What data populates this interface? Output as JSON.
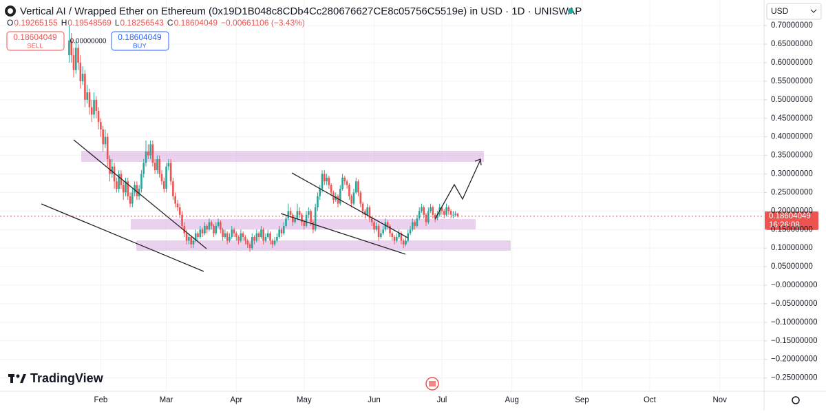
{
  "chart_data": {
    "type": "candlestick",
    "title": "Vertical AI / Wrapped Ether on Ethereum (0x19D1B048c8CDb4Cc280676627CE8c05756C5519e) in USD · 1D · UNISWAP",
    "ohlc_labels": [
      "O",
      "H",
      "L",
      "C"
    ],
    "change": "−0.00661106 (−3.43%)",
    "sell_label": "SELL",
    "buy_label": "BUY",
    "spread": "0.00000000",
    "currency": "USD",
    "countdown": "16:26:08",
    "brand": "TradingView",
    "up_color": "#26a69a",
    "down_color": "#ef5350",
    "grid": true,
    "xlim": [
      -13.6,
      324.6
    ],
    "xticks": [
      {
        "value": 31,
        "label": "Feb"
      },
      {
        "value": 60,
        "label": "Mar"
      },
      {
        "value": 91,
        "label": "Apr"
      },
      {
        "value": 121,
        "label": "May"
      },
      {
        "value": 152,
        "label": "Jun"
      },
      {
        "value": 182,
        "label": "Jul"
      },
      {
        "value": 213,
        "label": "Aug"
      },
      {
        "value": 244,
        "label": "Sep"
      },
      {
        "value": 274,
        "label": "Oct"
      },
      {
        "value": 305,
        "label": "Nov"
      }
    ],
    "ylim": [
      -0.286,
      0.769
    ],
    "yticks": [
      {
        "value": 0.7,
        "label": "0.70000000"
      },
      {
        "value": 0.65,
        "label": "0.65000000"
      },
      {
        "value": 0.6,
        "label": "0.60000000"
      },
      {
        "value": 0.55,
        "label": "0.55000000"
      },
      {
        "value": 0.5,
        "label": "0.50000000"
      },
      {
        "value": 0.45,
        "label": "0.45000000"
      },
      {
        "value": 0.4,
        "label": "0.40000000"
      },
      {
        "value": 0.35,
        "label": "0.35000000"
      },
      {
        "value": 0.3,
        "label": "0.30000000"
      },
      {
        "value": 0.25,
        "label": "0.25000000"
      },
      {
        "value": 0.2,
        "label": "0.20000000"
      },
      {
        "value": 0.15,
        "label": "0.15000000"
      },
      {
        "value": 0.1,
        "label": "0.10000000"
      },
      {
        "value": 0.05,
        "label": "0.05000000"
      },
      {
        "value": 0,
        "label": "−0.00000000"
      },
      {
        "value": -0.05,
        "label": "−0.05000000"
      },
      {
        "value": -0.1,
        "label": "−0.10000000"
      },
      {
        "value": -0.15,
        "label": "−0.15000000"
      },
      {
        "value": -0.2,
        "label": "−0.20000000"
      },
      {
        "value": -0.25,
        "label": "−0.25000000"
      }
    ],
    "x": [
      17,
      18,
      19,
      20,
      21,
      22,
      23,
      24,
      25,
      26,
      27,
      28,
      29,
      30,
      31,
      32,
      33,
      34,
      35,
      36,
      37,
      38,
      39,
      40,
      41,
      42,
      43,
      44,
      45,
      46,
      47,
      48,
      49,
      50,
      51,
      52,
      53,
      54,
      55,
      56,
      57,
      58,
      59,
      60,
      61,
      62,
      63,
      64,
      65,
      66,
      67,
      68,
      69,
      70,
      71,
      72,
      73,
      74,
      75,
      76,
      77,
      78,
      79,
      80,
      81,
      82,
      83,
      84,
      85,
      86,
      87,
      88,
      89,
      90,
      91,
      92,
      93,
      94,
      95,
      96,
      97,
      98,
      99,
      100,
      101,
      102,
      103,
      104,
      105,
      106,
      107,
      108,
      109,
      110,
      111,
      112,
      113,
      114,
      115,
      116,
      117,
      118,
      119,
      120,
      121,
      122,
      123,
      124,
      125,
      126,
      127,
      128,
      129,
      130,
      131,
      132,
      133,
      134,
      135,
      136,
      137,
      138,
      139,
      140,
      141,
      142,
      143,
      144,
      145,
      146,
      147,
      148,
      149,
      150,
      151,
      152,
      153,
      154,
      155,
      156,
      157,
      158,
      159,
      160,
      161,
      162,
      163,
      164,
      165,
      166,
      167,
      168,
      169,
      170,
      171,
      172,
      173,
      174,
      175,
      176,
      177,
      178,
      179,
      180,
      181,
      182,
      183,
      184,
      185,
      186,
      187,
      188,
      189
    ],
    "ohlc": [
      [
        0.62,
        0.7,
        0.6,
        0.66
      ],
      [
        0.66,
        0.68,
        0.6,
        0.62
      ],
      [
        0.62,
        0.64,
        0.56,
        0.58
      ],
      [
        0.58,
        0.66,
        0.57,
        0.64
      ],
      [
        0.64,
        0.65,
        0.58,
        0.6
      ],
      [
        0.6,
        0.62,
        0.53,
        0.55
      ],
      [
        0.55,
        0.59,
        0.54,
        0.57
      ],
      [
        0.57,
        0.58,
        0.48,
        0.5
      ],
      [
        0.5,
        0.54,
        0.49,
        0.52
      ],
      [
        0.52,
        0.53,
        0.46,
        0.48
      ],
      [
        0.48,
        0.5,
        0.44,
        0.46
      ],
      [
        0.46,
        0.52,
        0.45,
        0.5
      ],
      [
        0.5,
        0.51,
        0.45,
        0.47
      ],
      [
        0.47,
        0.48,
        0.42,
        0.44
      ],
      [
        0.44,
        0.45,
        0.4,
        0.42
      ],
      [
        0.42,
        0.43,
        0.36,
        0.38
      ],
      [
        0.38,
        0.42,
        0.37,
        0.4
      ],
      [
        0.4,
        0.41,
        0.32,
        0.34
      ],
      [
        0.34,
        0.35,
        0.28,
        0.3
      ],
      [
        0.3,
        0.34,
        0.29,
        0.32
      ],
      [
        0.32,
        0.33,
        0.26,
        0.28
      ],
      [
        0.28,
        0.29,
        0.25,
        0.26
      ],
      [
        0.26,
        0.31,
        0.25,
        0.3
      ],
      [
        0.3,
        0.31,
        0.26,
        0.27
      ],
      [
        0.27,
        0.28,
        0.23,
        0.25
      ],
      [
        0.25,
        0.29,
        0.24,
        0.28
      ],
      [
        0.28,
        0.29,
        0.23,
        0.24
      ],
      [
        0.24,
        0.25,
        0.21,
        0.22
      ],
      [
        0.22,
        0.26,
        0.21,
        0.25
      ],
      [
        0.25,
        0.28,
        0.24,
        0.27
      ],
      [
        0.27,
        0.28,
        0.23,
        0.24
      ],
      [
        0.24,
        0.27,
        0.23,
        0.26
      ],
      [
        0.26,
        0.31,
        0.25,
        0.3
      ],
      [
        0.3,
        0.34,
        0.29,
        0.33
      ],
      [
        0.33,
        0.39,
        0.32,
        0.36
      ],
      [
        0.36,
        0.38,
        0.34,
        0.35
      ],
      [
        0.35,
        0.39,
        0.34,
        0.38
      ],
      [
        0.38,
        0.39,
        0.32,
        0.33
      ],
      [
        0.33,
        0.34,
        0.3,
        0.31
      ],
      [
        0.31,
        0.35,
        0.3,
        0.34
      ],
      [
        0.34,
        0.35,
        0.29,
        0.3
      ],
      [
        0.3,
        0.31,
        0.27,
        0.28
      ],
      [
        0.28,
        0.29,
        0.25,
        0.26
      ],
      [
        0.26,
        0.33,
        0.25,
        0.32
      ],
      [
        0.32,
        0.34,
        0.31,
        0.33
      ],
      [
        0.33,
        0.34,
        0.27,
        0.28
      ],
      [
        0.28,
        0.29,
        0.23,
        0.24
      ],
      [
        0.24,
        0.25,
        0.21,
        0.22
      ],
      [
        0.22,
        0.23,
        0.2,
        0.21
      ],
      [
        0.21,
        0.22,
        0.18,
        0.19
      ],
      [
        0.19,
        0.2,
        0.15,
        0.16
      ],
      [
        0.16,
        0.17,
        0.13,
        0.14
      ],
      [
        0.14,
        0.15,
        0.11,
        0.12
      ],
      [
        0.12,
        0.14,
        0.11,
        0.13
      ],
      [
        0.13,
        0.135,
        0.1,
        0.11
      ],
      [
        0.11,
        0.13,
        0.1,
        0.12
      ],
      [
        0.12,
        0.15,
        0.115,
        0.14
      ],
      [
        0.14,
        0.145,
        0.12,
        0.13
      ],
      [
        0.13,
        0.16,
        0.125,
        0.15
      ],
      [
        0.15,
        0.155,
        0.13,
        0.14
      ],
      [
        0.14,
        0.17,
        0.135,
        0.16
      ],
      [
        0.16,
        0.165,
        0.14,
        0.15
      ],
      [
        0.15,
        0.18,
        0.145,
        0.17
      ],
      [
        0.17,
        0.175,
        0.15,
        0.16
      ],
      [
        0.16,
        0.165,
        0.13,
        0.14
      ],
      [
        0.14,
        0.17,
        0.135,
        0.16
      ],
      [
        0.16,
        0.18,
        0.155,
        0.17
      ],
      [
        0.17,
        0.175,
        0.14,
        0.15
      ],
      [
        0.15,
        0.155,
        0.12,
        0.13
      ],
      [
        0.13,
        0.15,
        0.125,
        0.14
      ],
      [
        0.14,
        0.145,
        0.11,
        0.12
      ],
      [
        0.12,
        0.14,
        0.115,
        0.13
      ],
      [
        0.13,
        0.16,
        0.125,
        0.15
      ],
      [
        0.15,
        0.155,
        0.13,
        0.14
      ],
      [
        0.14,
        0.145,
        0.12,
        0.13
      ],
      [
        0.13,
        0.135,
        0.11,
        0.12
      ],
      [
        0.12,
        0.15,
        0.115,
        0.14
      ],
      [
        0.14,
        0.145,
        0.12,
        0.13
      ],
      [
        0.13,
        0.135,
        0.11,
        0.12
      ],
      [
        0.12,
        0.125,
        0.1,
        0.11
      ],
      [
        0.11,
        0.115,
        0.09,
        0.1
      ],
      [
        0.1,
        0.14,
        0.095,
        0.13
      ],
      [
        0.13,
        0.135,
        0.11,
        0.12
      ],
      [
        0.12,
        0.15,
        0.115,
        0.14
      ],
      [
        0.14,
        0.145,
        0.12,
        0.13
      ],
      [
        0.13,
        0.16,
        0.125,
        0.15
      ],
      [
        0.15,
        0.155,
        0.11,
        0.12
      ],
      [
        0.12,
        0.14,
        0.115,
        0.13
      ],
      [
        0.13,
        0.15,
        0.125,
        0.14
      ],
      [
        0.14,
        0.145,
        0.11,
        0.12
      ],
      [
        0.12,
        0.125,
        0.1,
        0.11
      ],
      [
        0.11,
        0.13,
        0.105,
        0.12
      ],
      [
        0.12,
        0.14,
        0.115,
        0.13
      ],
      [
        0.13,
        0.16,
        0.125,
        0.15
      ],
      [
        0.15,
        0.155,
        0.13,
        0.14
      ],
      [
        0.14,
        0.17,
        0.135,
        0.16
      ],
      [
        0.16,
        0.19,
        0.155,
        0.18
      ],
      [
        0.18,
        0.22,
        0.175,
        0.2
      ],
      [
        0.2,
        0.21,
        0.18,
        0.19
      ],
      [
        0.19,
        0.195,
        0.16,
        0.17
      ],
      [
        0.17,
        0.19,
        0.165,
        0.18
      ],
      [
        0.18,
        0.22,
        0.175,
        0.2
      ],
      [
        0.2,
        0.21,
        0.18,
        0.19
      ],
      [
        0.19,
        0.195,
        0.16,
        0.17
      ],
      [
        0.17,
        0.175,
        0.15,
        0.16
      ],
      [
        0.16,
        0.2,
        0.155,
        0.19
      ],
      [
        0.19,
        0.21,
        0.18,
        0.2
      ],
      [
        0.2,
        0.205,
        0.16,
        0.17
      ],
      [
        0.17,
        0.175,
        0.14,
        0.15
      ],
      [
        0.15,
        0.22,
        0.145,
        0.21
      ],
      [
        0.21,
        0.25,
        0.2,
        0.24
      ],
      [
        0.24,
        0.27,
        0.23,
        0.26
      ],
      [
        0.26,
        0.31,
        0.25,
        0.3
      ],
      [
        0.3,
        0.31,
        0.27,
        0.28
      ],
      [
        0.28,
        0.3,
        0.27,
        0.29
      ],
      [
        0.29,
        0.295,
        0.26,
        0.27
      ],
      [
        0.27,
        0.275,
        0.24,
        0.25
      ],
      [
        0.25,
        0.255,
        0.22,
        0.23
      ],
      [
        0.23,
        0.25,
        0.225,
        0.24
      ],
      [
        0.24,
        0.245,
        0.21,
        0.22
      ],
      [
        0.22,
        0.27,
        0.215,
        0.26
      ],
      [
        0.26,
        0.3,
        0.255,
        0.29
      ],
      [
        0.29,
        0.295,
        0.27,
        0.28
      ],
      [
        0.28,
        0.285,
        0.26,
        0.27
      ],
      [
        0.27,
        0.275,
        0.23,
        0.24
      ],
      [
        0.24,
        0.245,
        0.21,
        0.22
      ],
      [
        0.22,
        0.26,
        0.215,
        0.25
      ],
      [
        0.25,
        0.29,
        0.245,
        0.28
      ],
      [
        0.28,
        0.285,
        0.24,
        0.25
      ],
      [
        0.25,
        0.255,
        0.21,
        0.22
      ],
      [
        0.22,
        0.225,
        0.19,
        0.2
      ],
      [
        0.2,
        0.205,
        0.18,
        0.19
      ],
      [
        0.19,
        0.22,
        0.185,
        0.21
      ],
      [
        0.21,
        0.215,
        0.17,
        0.18
      ],
      [
        0.18,
        0.185,
        0.16,
        0.17
      ],
      [
        0.17,
        0.175,
        0.14,
        0.15
      ],
      [
        0.15,
        0.17,
        0.145,
        0.16
      ],
      [
        0.16,
        0.165,
        0.12,
        0.13
      ],
      [
        0.13,
        0.15,
        0.125,
        0.14
      ],
      [
        0.14,
        0.16,
        0.135,
        0.15
      ],
      [
        0.15,
        0.18,
        0.145,
        0.17
      ],
      [
        0.17,
        0.175,
        0.15,
        0.16
      ],
      [
        0.16,
        0.165,
        0.13,
        0.14
      ],
      [
        0.14,
        0.145,
        0.12,
        0.13
      ],
      [
        0.13,
        0.135,
        0.11,
        0.12
      ],
      [
        0.12,
        0.14,
        0.115,
        0.13
      ],
      [
        0.13,
        0.15,
        0.125,
        0.14
      ],
      [
        0.14,
        0.145,
        0.11,
        0.12
      ],
      [
        0.12,
        0.125,
        0.1,
        0.11
      ],
      [
        0.11,
        0.13,
        0.105,
        0.12
      ],
      [
        0.12,
        0.15,
        0.115,
        0.14
      ],
      [
        0.14,
        0.16,
        0.135,
        0.15
      ],
      [
        0.15,
        0.18,
        0.145,
        0.17
      ],
      [
        0.17,
        0.175,
        0.15,
        0.16
      ],
      [
        0.16,
        0.19,
        0.155,
        0.18
      ],
      [
        0.18,
        0.21,
        0.175,
        0.2
      ],
      [
        0.2,
        0.22,
        0.195,
        0.21
      ],
      [
        0.21,
        0.215,
        0.18,
        0.19
      ],
      [
        0.19,
        0.195,
        0.16,
        0.17
      ],
      [
        0.17,
        0.21,
        0.165,
        0.2
      ],
      [
        0.2,
        0.22,
        0.195,
        0.21
      ],
      [
        0.21,
        0.215,
        0.18,
        0.19
      ],
      [
        0.19,
        0.195,
        0.17,
        0.18
      ],
      [
        0.18,
        0.2,
        0.175,
        0.19
      ],
      [
        0.19,
        0.22,
        0.185,
        0.21
      ],
      [
        0.21,
        0.215,
        0.19,
        0.2
      ],
      [
        0.2,
        0.205,
        0.18,
        0.19
      ],
      [
        0.19,
        0.22,
        0.185,
        0.21
      ],
      [
        0.21,
        0.215,
        0.19,
        0.2
      ],
      [
        0.2,
        0.205,
        0.18,
        0.19
      ],
      [
        0.19,
        0.2,
        0.18,
        0.19
      ],
      [
        0.19,
        0.2,
        0.185,
        0.193
      ],
      [
        0.19265155,
        0.19548569,
        0.18256543,
        0.18604049
      ]
    ]
  }
}
